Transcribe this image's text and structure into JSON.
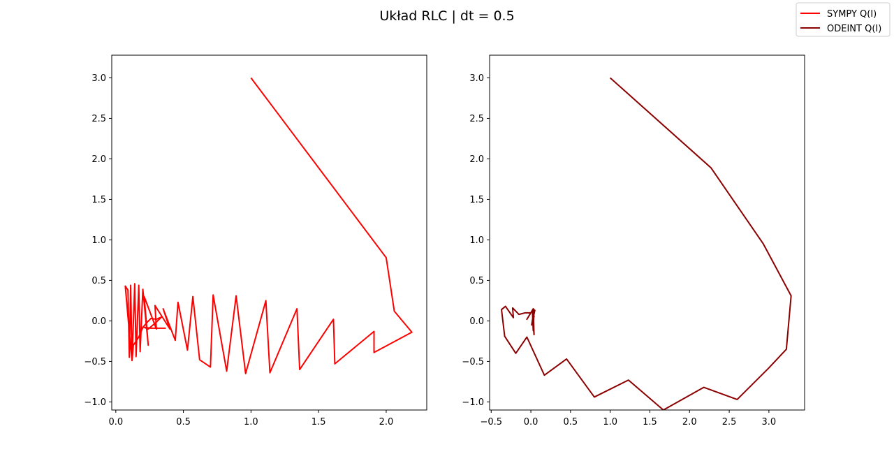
{
  "figure": {
    "title": "Układ RLC | dt = 0.5"
  },
  "legend": {
    "placement": "top-right",
    "entries": [
      {
        "label": "SYMPY Q(I)",
        "color": "#ff0000"
      },
      {
        "label": "ODEINT Q(I)",
        "color": "#8b0000"
      }
    ]
  },
  "chart_data": [
    {
      "type": "line",
      "title": "",
      "xlabel": "",
      "ylabel": "",
      "xlim": [
        -0.03,
        2.3
      ],
      "ylim": [
        -1.1,
        3.28
      ],
      "grid": false,
      "xticks": [
        0.0,
        0.5,
        1.0,
        1.5,
        2.0
      ],
      "xtick_labels": [
        "0.0",
        "0.5",
        "1.0",
        "1.5",
        "2.0"
      ],
      "yticks": [
        -1.0,
        -0.5,
        0.0,
        0.5,
        1.0,
        1.5,
        2.0,
        2.5,
        3.0
      ],
      "ytick_labels": [
        "−1.0",
        "−0.5",
        "0.0",
        "0.5",
        "1.0",
        "1.5",
        "2.0",
        "2.5",
        "3.0"
      ],
      "series": [
        {
          "name": "SYMPY Q(I)",
          "color": "#ff0000",
          "x": [
            1.0,
            2.0,
            2.06,
            2.19,
            1.91,
            1.91,
            1.62,
            1.61,
            1.36,
            1.34,
            1.14,
            1.11,
            0.96,
            0.89,
            0.82,
            0.72,
            0.7,
            0.62,
            0.57,
            0.53,
            0.46,
            0.44,
            0.35,
            0.4,
            0.29,
            0.3,
            0.21,
            0.24,
            0.2,
            0.18,
            0.17,
            0.15,
            0.14,
            0.12,
            0.11,
            0.1,
            0.09,
            0.07,
            0.1,
            0.12,
            0.13,
            0.17,
            0.2,
            0.23,
            0.26,
            0.3,
            0.34,
            0.29,
            0.24,
            0.21,
            0.26,
            0.37
          ],
          "y": [
            3.0,
            0.78,
            0.12,
            -0.14,
            -0.39,
            -0.13,
            -0.53,
            0.02,
            -0.6,
            0.15,
            -0.64,
            0.25,
            -0.65,
            0.31,
            -0.62,
            0.32,
            -0.57,
            -0.48,
            0.3,
            -0.36,
            0.23,
            -0.24,
            0.15,
            -0.1,
            0.19,
            -0.1,
            0.3,
            -0.3,
            0.39,
            -0.38,
            0.44,
            -0.44,
            0.46,
            -0.49,
            0.44,
            -0.45,
            0.38,
            0.43,
            -0.14,
            -0.49,
            -0.3,
            -0.2,
            -0.08,
            -0.02,
            0.03,
            0.02,
            0.05,
            -0.03,
            -0.1,
            -0.08,
            -0.09,
            -0.09
          ]
        }
      ]
    },
    {
      "type": "line",
      "title": "",
      "xlabel": "",
      "ylabel": "",
      "xlim": [
        -0.52,
        3.45
      ],
      "ylim": [
        -1.1,
        3.28
      ],
      "grid": false,
      "xticks": [
        -0.5,
        0.0,
        0.5,
        1.0,
        1.5,
        2.0,
        2.5,
        3.0
      ],
      "xtick_labels": [
        "−0.5",
        "0.0",
        "0.5",
        "1.0",
        "1.5",
        "2.0",
        "2.5",
        "3.0"
      ],
      "yticks": [
        -1.0,
        -0.5,
        0.0,
        0.5,
        1.0,
        1.5,
        2.0,
        2.5,
        3.0
      ],
      "ytick_labels": [
        "−1.0",
        "−0.5",
        "0.0",
        "0.5",
        "1.0",
        "1.5",
        "2.0",
        "2.5",
        "3.0"
      ],
      "series": [
        {
          "name": "ODEINT Q(I)",
          "color": "#8b0000",
          "x": [
            1.0,
            2.27,
            2.93,
            3.28,
            3.22,
            3.0,
            2.6,
            2.18,
            1.67,
            1.23,
            0.8,
            0.45,
            0.17,
            -0.05,
            -0.19,
            -0.33,
            -0.37,
            -0.32,
            -0.22,
            -0.23,
            -0.15,
            -0.07,
            0.0,
            -0.05,
            0.03,
            0.04,
            0.02,
            0.05,
            0.01,
            0.04,
            0.03,
            0.02,
            0.04,
            0.03
          ],
          "y": [
            3.0,
            1.89,
            0.95,
            0.31,
            -0.35,
            -0.58,
            -0.97,
            -0.82,
            -1.1,
            -0.73,
            -0.94,
            -0.47,
            -0.67,
            -0.2,
            -0.4,
            -0.19,
            0.14,
            0.18,
            0.04,
            0.16,
            0.08,
            0.1,
            0.1,
            0.02,
            0.15,
            -0.17,
            0.12,
            0.13,
            -0.05,
            0.14,
            -0.12,
            0.11,
            0.05,
            0.14
          ]
        }
      ]
    }
  ]
}
